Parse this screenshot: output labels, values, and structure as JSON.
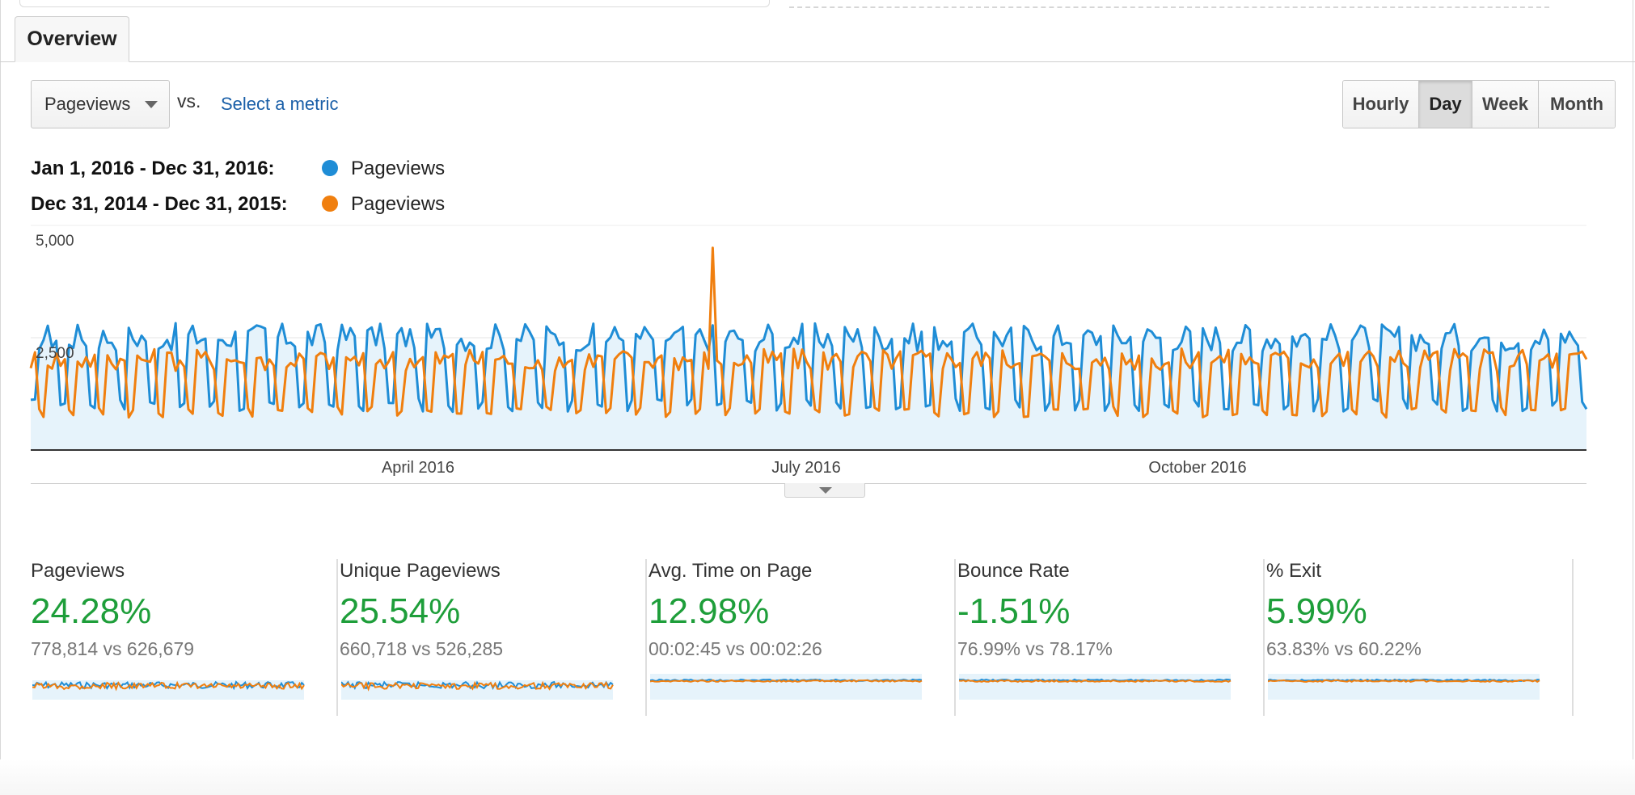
{
  "tabs": {
    "overview_label": "Overview"
  },
  "metric_selector": {
    "selected": "Pageviews",
    "vs_label": "vs.",
    "select_metric_link": "Select a metric"
  },
  "granularity": {
    "options": [
      "Hourly",
      "Day",
      "Week",
      "Month"
    ],
    "active": "Day"
  },
  "legend": [
    {
      "range": "Jan 1, 2016 - Dec 31, 2016:",
      "series": "Pageviews",
      "color": "#1f8dd6"
    },
    {
      "range": "Dec 31, 2014 - Dec 31, 2015:",
      "series": "Pageviews",
      "color": "#f07f0f"
    }
  ],
  "chart_data": {
    "type": "line",
    "x_tick_labels": [
      "April 2016",
      "July 2016",
      "October 2016"
    ],
    "y_tick_labels": [
      "5,000",
      "2,500"
    ],
    "ylim": [
      0,
      5000
    ],
    "grid": true,
    "series": [
      {
        "name": "Pageviews",
        "range": "Jan 1, 2016 - Dec 31, 2016",
        "color": "#1f8dd6",
        "fill": "#e6f3fb",
        "pattern": {
          "period_days": 7,
          "weekday_level": 2500,
          "weekend_level": 1000,
          "start_offset_day": 5
        }
      },
      {
        "name": "Pageviews",
        "range": "Dec 31, 2014 - Dec 31, 2015",
        "color": "#f07f0f",
        "pattern": {
          "period_days": 7,
          "weekday_level": 2000,
          "weekend_level": 850,
          "start_offset_day": 3,
          "spike_day": 160,
          "spike_value": 4500
        }
      }
    ]
  },
  "scorecards": [
    {
      "name": "Pageviews",
      "change": "24.28%",
      "compare": "778,814 vs 626,679"
    },
    {
      "name": "Unique Pageviews",
      "change": "25.54%",
      "compare": "660,718 vs 526,285"
    },
    {
      "name": "Avg. Time on Page",
      "change": "12.98%",
      "compare": "00:02:45 vs 00:02:26"
    },
    {
      "name": "Bounce Rate",
      "change": "-1.51%",
      "compare": "76.99% vs 78.17%"
    },
    {
      "name": "% Exit",
      "change": "5.99%",
      "compare": "63.83% vs 60.22%"
    }
  ]
}
